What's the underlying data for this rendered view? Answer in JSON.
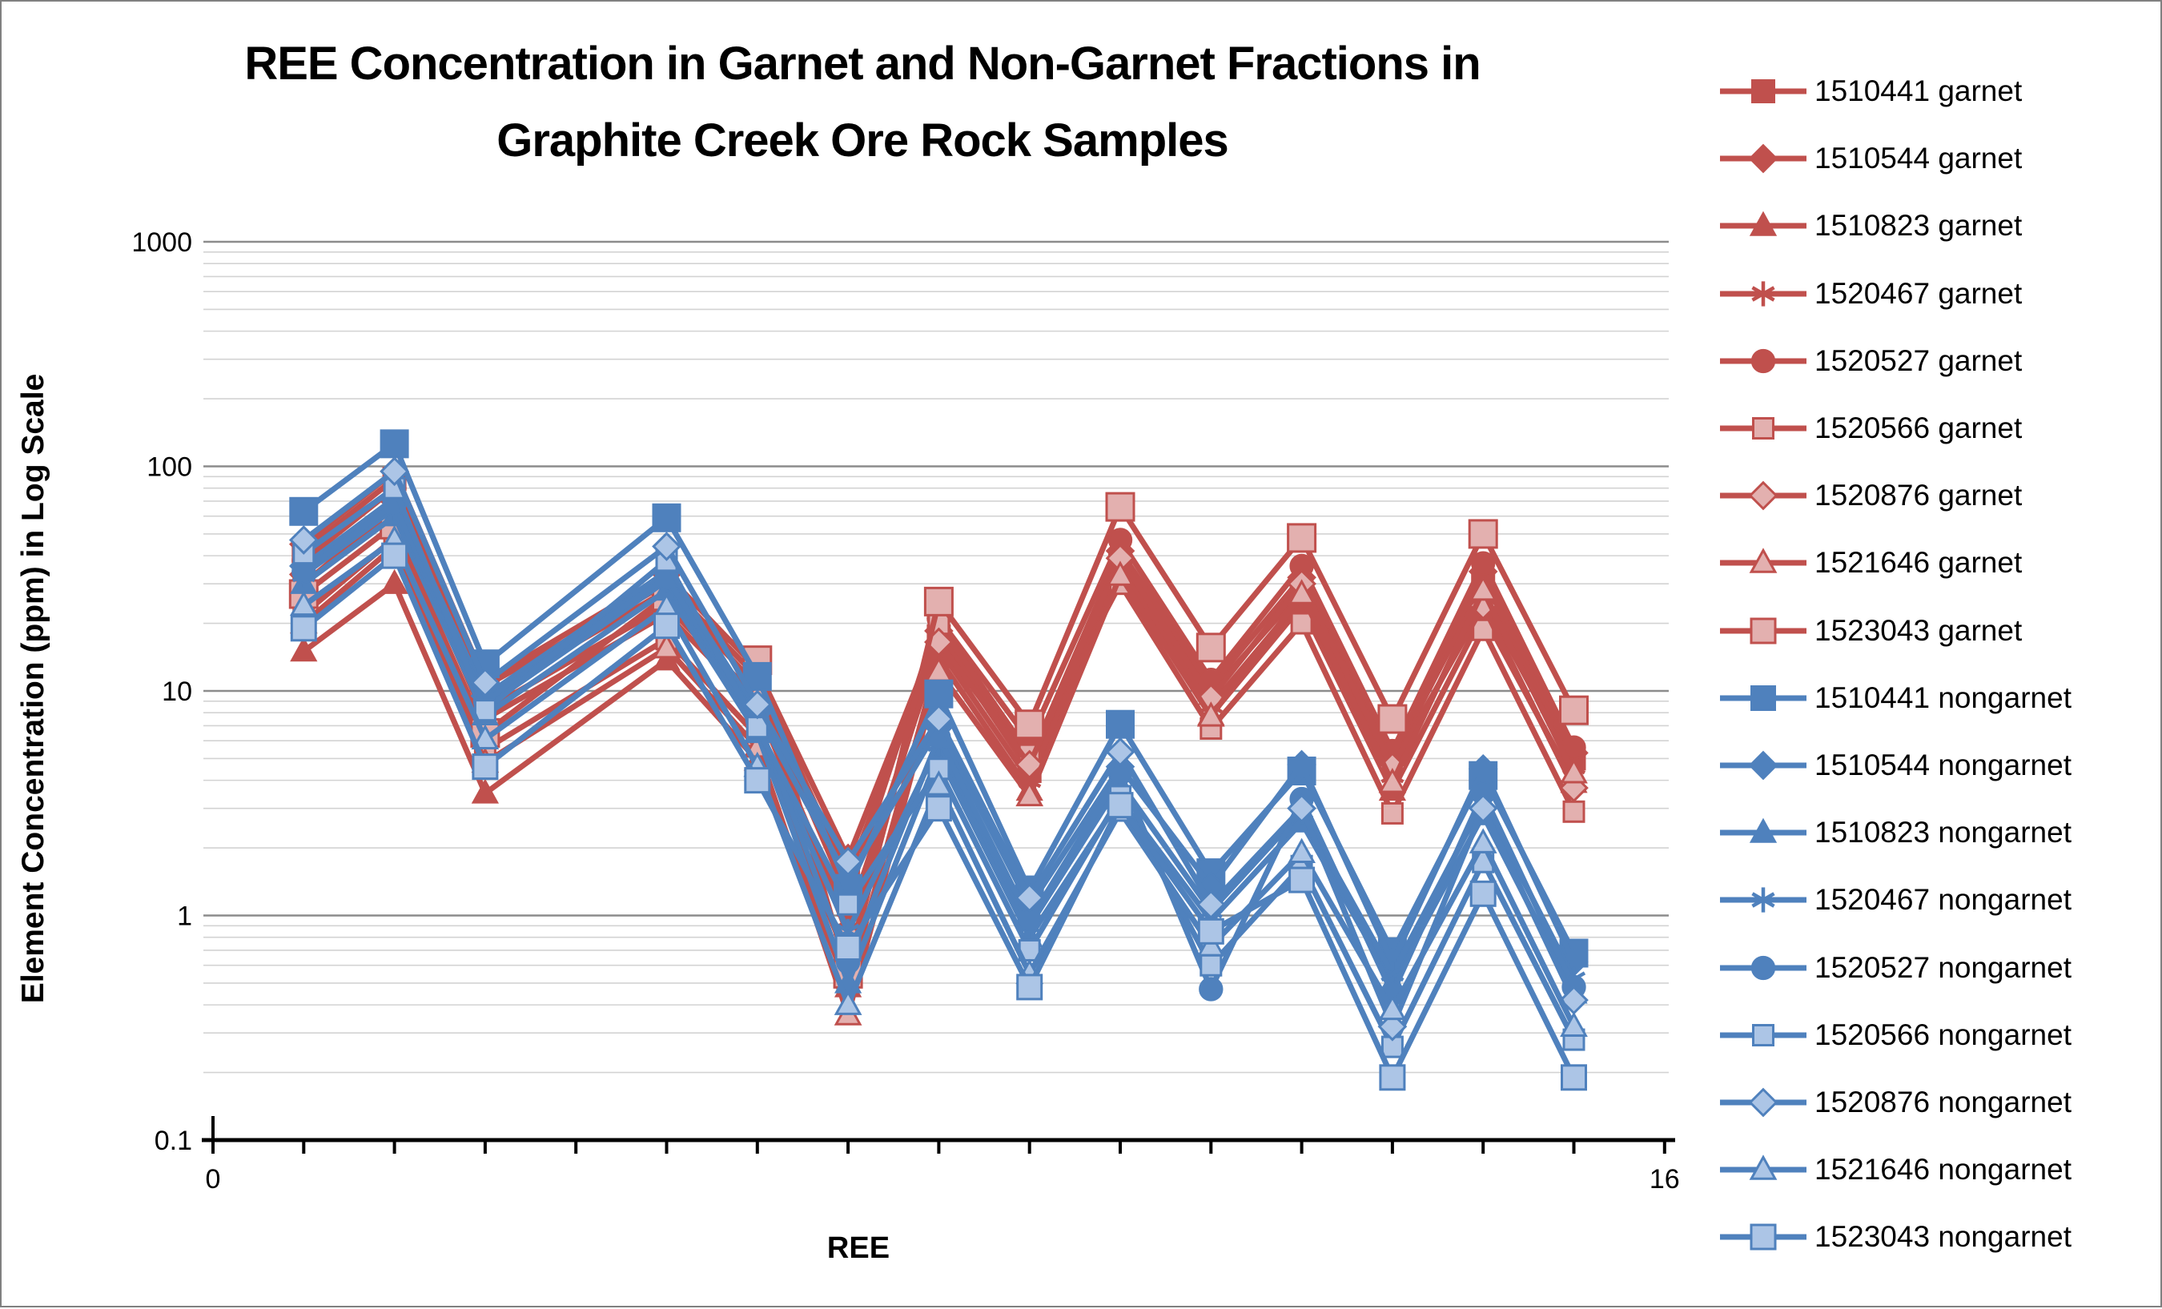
{
  "window": {
    "background": "#ffffff",
    "border_color": "#808080"
  },
  "chart_data": {
    "type": "line",
    "title_lines": [
      "REE Concentration in Garnet and Non-Garnet Fractions in",
      "Graphite Creek Ore Rock Samples"
    ],
    "xlabel": "REE",
    "ylabel": "Element Concentration (ppm) in Log Scale",
    "legend_position": "right",
    "grid": "log-minor-and-major",
    "colors": {
      "garnet_line": "#C0504D",
      "garnet_fill_light": "#E3B0AF",
      "nongarnet_line": "#4F81BD",
      "nongarnet_fill_light": "#ACC5E6",
      "gridline_minor": "#D3D3D3",
      "gridline_major": "#8C8C8C",
      "axis": "#000000"
    },
    "x_axis": {
      "min": 0,
      "max": 16,
      "tick_step": 1,
      "shown_tick_labels": [
        {
          "label": "0",
          "value": 0
        },
        {
          "label": "16",
          "value": 16
        }
      ]
    },
    "y_axis": {
      "scale": "log",
      "min": 0.1,
      "max": 1000,
      "ticks": [
        {
          "label": "1000",
          "value": 1000
        },
        {
          "label": "100",
          "value": 100
        },
        {
          "label": "10",
          "value": 10
        },
        {
          "label": "1",
          "value": 1
        },
        {
          "label": "0.1",
          "value": 0.1
        }
      ]
    },
    "x": [
      1,
      2,
      3,
      5,
      6,
      7,
      8,
      9,
      10,
      11,
      12,
      13,
      14,
      15
    ],
    "series": [
      {
        "name": "1510441 garnet",
        "group": "garnet",
        "marker": "square",
        "variant": "solid",
        "size": 28,
        "values": [
          42,
          88,
          10.5,
          30,
          11.5,
          1.5,
          17.5,
          4.4,
          38,
          9.8,
          28,
          4.9,
          30,
          5.0
        ]
      },
      {
        "name": "1510544 garnet",
        "group": "garnet",
        "marker": "diamond",
        "variant": "solid",
        "size": 26,
        "values": [
          45,
          95,
          11,
          33,
          12.5,
          1.8,
          18.5,
          4.9,
          42,
          10.5,
          32,
          5.2,
          34,
          5.3
        ]
      },
      {
        "name": "1510823 garnet",
        "group": "garnet",
        "marker": "triangle",
        "variant": "solid",
        "size": 26,
        "values": [
          15,
          30,
          3.5,
          13.7,
          4.9,
          0.48,
          14,
          3.6,
          33,
          7.8,
          24,
          3.6,
          22,
          3.9
        ]
      },
      {
        "name": "1520467 garnet",
        "group": "garnet",
        "marker": "asterisk",
        "variant": "solid",
        "size": 26,
        "values": [
          30,
          65,
          7.5,
          22,
          8.5,
          0.95,
          15.5,
          4.0,
          35,
          8.6,
          26,
          4.2,
          26,
          4.6
        ]
      },
      {
        "name": "1520527 garnet",
        "group": "garnet",
        "marker": "circle",
        "variant": "solid",
        "size": 27,
        "values": [
          38,
          80,
          9.5,
          28,
          10.5,
          1.2,
          21,
          6.0,
          47,
          11.2,
          36,
          5.4,
          37,
          5.6
        ]
      },
      {
        "name": "1520566 garnet",
        "group": "garnet",
        "marker": "square",
        "variant": "light",
        "size": 25,
        "values": [
          22,
          48,
          5.5,
          17,
          6.3,
          0.62,
          19.9,
          5.2,
          30,
          6.8,
          20,
          2.85,
          18.7,
          2.9
        ]
      },
      {
        "name": "1520876 garnet",
        "group": "garnet",
        "marker": "diamond",
        "variant": "light",
        "size": 25,
        "values": [
          33,
          70,
          8.2,
          24,
          9.2,
          0.82,
          16.5,
          4.7,
          39,
          9.3,
          30,
          4.6,
          24,
          3.7
        ]
      },
      {
        "name": "1521646 garnet",
        "group": "garnet",
        "marker": "triangle",
        "variant": "light",
        "size": 25,
        "values": [
          20,
          44,
          4.8,
          15.5,
          5.6,
          0.36,
          12.2,
          3.4,
          32.6,
          7.7,
          27,
          3.9,
          28,
          4.3
        ]
      },
      {
        "name": "1523043 garnet",
        "group": "garnet",
        "marker": "square",
        "variant": "light",
        "size": 34,
        "values": [
          27,
          55,
          6.5,
          26.4,
          13.7,
          0.55,
          25,
          7.1,
          66,
          15.6,
          48,
          7.5,
          50,
          8.2
        ]
      },
      {
        "name": "1510441 nongarnet",
        "group": "nongarnet",
        "marker": "square",
        "variant": "solid",
        "size": 34,
        "values": [
          63,
          126,
          13.2,
          59,
          11.6,
          1.32,
          9.7,
          1.3,
          7.1,
          1.55,
          4.4,
          0.69,
          4.2,
          0.68
        ]
      },
      {
        "name": "1510544 nongarnet",
        "group": "nongarnet",
        "marker": "diamond",
        "variant": "solid",
        "size": 26,
        "values": [
          36,
          72,
          9.5,
          34,
          8.0,
          1.45,
          6.9,
          1.1,
          4.6,
          1.35,
          4.7,
          0.62,
          4.5,
          0.62
        ]
      },
      {
        "name": "1510823 nongarnet",
        "group": "nongarnet",
        "marker": "triangle",
        "variant": "solid",
        "size": 26,
        "values": [
          30,
          60,
          7.8,
          28,
          6.5,
          0.5,
          5.2,
          0.8,
          3.3,
          0.95,
          2.6,
          0.5,
          2.8,
          0.45
        ]
      },
      {
        "name": "1520467 nongarnet",
        "group": "nongarnet",
        "marker": "asterisk",
        "variant": "solid",
        "size": 26,
        "values": [
          33,
          65,
          8.5,
          31,
          7.0,
          0.85,
          5.8,
          0.9,
          3.9,
          1.05,
          2.9,
          0.55,
          3.2,
          0.52
        ]
      },
      {
        "name": "1520527 nongarnet",
        "group": "nongarnet",
        "marker": "circle",
        "variant": "solid",
        "size": 27,
        "values": [
          34,
          68,
          9.0,
          32,
          7.45,
          0.62,
          6.2,
          0.95,
          4.3,
          0.47,
          3.3,
          0.45,
          3.5,
          0.48
        ]
      },
      {
        "name": "1520566 nongarnet",
        "group": "nongarnet",
        "marker": "square",
        "variant": "light",
        "size": 25,
        "values": [
          41,
          80,
          8.2,
          38,
          6.9,
          1.12,
          4.5,
          0.7,
          3.4,
          0.6,
          1.66,
          0.26,
          1.73,
          0.28
        ]
      },
      {
        "name": "1520876 nongarnet",
        "group": "nongarnet",
        "marker": "diamond",
        "variant": "light",
        "size": 25,
        "values": [
          47,
          95,
          10.9,
          44,
          8.7,
          1.74,
          7.5,
          1.2,
          5.35,
          1.12,
          3.0,
          0.32,
          3.0,
          0.42
        ]
      },
      {
        "name": "1521646 nongarnet",
        "group": "nongarnet",
        "marker": "triangle",
        "variant": "light",
        "size": 25,
        "values": [
          24,
          47,
          6.1,
          23.5,
          4.6,
          0.4,
          3.8,
          0.55,
          2.9,
          0.73,
          1.9,
          0.38,
          2.1,
          0.32
        ]
      },
      {
        "name": "1523043 nongarnet",
        "group": "nongarnet",
        "marker": "square",
        "variant": "light",
        "size": 30,
        "values": [
          19,
          40,
          4.6,
          19.5,
          4.0,
          0.72,
          3.0,
          0.48,
          3.1,
          0.85,
          1.44,
          0.19,
          1.25,
          0.19
        ]
      }
    ]
  }
}
